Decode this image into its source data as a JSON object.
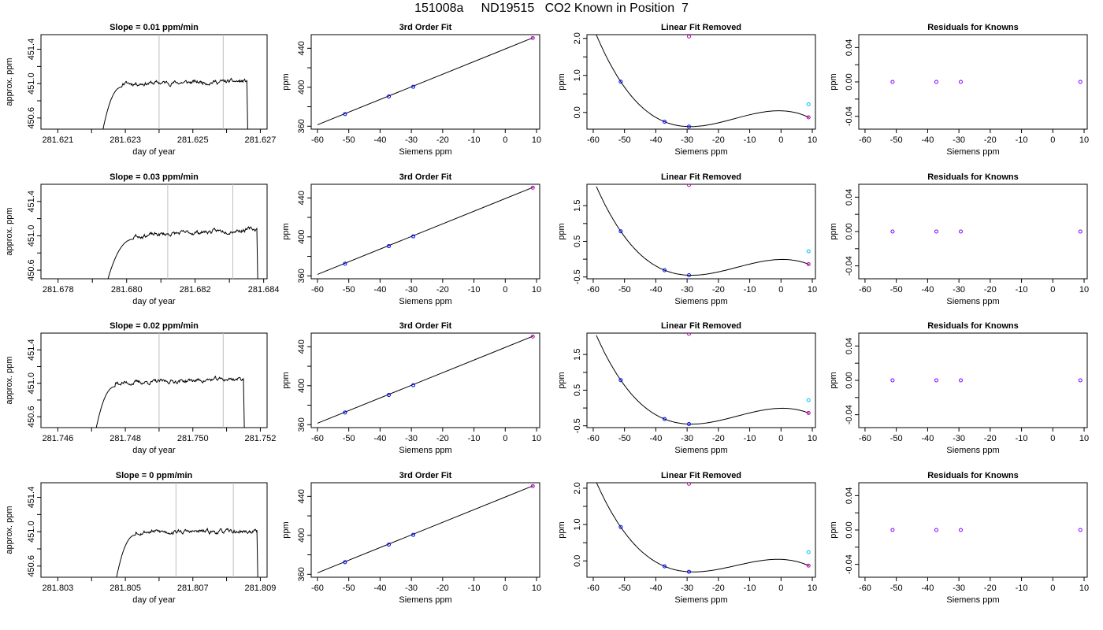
{
  "figure": {
    "title": "151008a     ND19515   CO2 Known in Position  7",
    "colors": {
      "axis": "#000000",
      "trace": "#000000",
      "vline": "#bebebe",
      "point_blue": "#0000ff",
      "point_magenta": "#c000c0",
      "point_cyan": "#00bfff",
      "point_purple": "#8000ff"
    }
  },
  "chart_data": [
    {
      "row": 1,
      "type": "line",
      "title": "Slope =  0.01  ppm/min",
      "xlabel": "day of year",
      "ylabel": "approx. ppm",
      "xlim": [
        281.6205,
        281.6272
      ],
      "ylim": [
        450.47,
        451.57
      ],
      "xticks": [
        281.621,
        281.622,
        281.623,
        281.624,
        281.625,
        281.626,
        281.627
      ],
      "xtick_labels": [
        "281.621",
        "281.623",
        "281.625",
        "281.627"
      ],
      "yticks": [
        450.6,
        450.8,
        451.0,
        451.2,
        451.4
      ],
      "ytick_labels": [
        "450.6",
        "451.0",
        "451.4"
      ],
      "vlines": [
        281.624,
        281.6259
      ],
      "trace": {
        "start": 281.6223,
        "rise_end": 281.6229,
        "end": 281.6266,
        "level": 451.0,
        "slope": 0.01,
        "seed": 11
      }
    },
    {
      "row": 1,
      "type": "line",
      "title": "3rd Order Fit",
      "xlabel": "Siemens ppm",
      "ylabel": "ppm",
      "xlim": [
        -62,
        11
      ],
      "ylim": [
        357,
        454
      ],
      "xticks": [
        -60,
        -50,
        -40,
        -30,
        -20,
        -10,
        0,
        10
      ],
      "xtick_labels": [
        "-60",
        "-50",
        "-40",
        "-30",
        "-20",
        "-10",
        "0",
        "10"
      ],
      "yticks": [
        360,
        380,
        400,
        420,
        440
      ],
      "ytick_labels": [
        "360",
        "400",
        "440"
      ],
      "fit_line": {
        "x": [
          -60,
          9
        ],
        "y": [
          361.5,
          451
        ]
      },
      "points": [
        {
          "x": -51.2,
          "y": 372.5,
          "color": "blue"
        },
        {
          "x": -37.2,
          "y": 390.5,
          "color": "blue"
        },
        {
          "x": -29.4,
          "y": 400.5,
          "color": "blue"
        },
        {
          "x": 8.8,
          "y": 450.5,
          "color": "magenta"
        }
      ]
    },
    {
      "row": 1,
      "type": "line",
      "title": "Linear Fit Removed",
      "xlabel": "Siemens ppm",
      "ylabel": "ppm",
      "xlim": [
        -62,
        11
      ],
      "ylim": [
        -0.45,
        2.1
      ],
      "xticks": [
        -60,
        -50,
        -40,
        -30,
        -20,
        -10,
        0,
        10
      ],
      "xtick_labels": [
        "-60",
        "-50",
        "-40",
        "-30",
        "-20",
        "-10",
        "0",
        "10"
      ],
      "yticks": [
        0.0,
        0.5,
        1.0,
        1.5,
        2.0
      ],
      "ytick_labels": [
        "0.0",
        "1.0",
        "2.0"
      ],
      "curve_points": [
        [
          -59,
          2.03
        ],
        [
          -51.2,
          0.83
        ],
        [
          -37.2,
          -0.25
        ],
        [
          -29.4,
          -0.38
        ],
        [
          8.8,
          -0.13
        ]
      ],
      "points": [
        {
          "x": -51.2,
          "y": 0.83,
          "color": "blue"
        },
        {
          "x": -37.2,
          "y": -0.25,
          "color": "blue"
        },
        {
          "x": -29.4,
          "y": -0.38,
          "color": "blue"
        },
        {
          "x": 8.8,
          "y": -0.13,
          "color": "magenta"
        },
        {
          "x": -29.4,
          "y": 2.05,
          "color": "magenta"
        },
        {
          "x": 8.8,
          "y": 0.22,
          "color": "cyan"
        }
      ]
    },
    {
      "row": 1,
      "type": "scatter",
      "title": "Residuals for Knowns",
      "xlabel": "Siemens ppm",
      "ylabel": "ppm",
      "xlim": [
        -62,
        11
      ],
      "ylim": [
        -0.055,
        0.055
      ],
      "xticks": [
        -60,
        -50,
        -40,
        -30,
        -20,
        -10,
        0,
        10
      ],
      "xtick_labels": [
        "-60",
        "-50",
        "-40",
        "-30",
        "-20",
        "-10",
        "0",
        "10"
      ],
      "yticks": [
        -0.04,
        -0.02,
        0.0,
        0.02,
        0.04
      ],
      "ytick_labels": [
        "-0.04",
        "0.00",
        "0.04"
      ],
      "points": [
        {
          "x": -51.2,
          "y": 0,
          "color": "purple"
        },
        {
          "x": -37.2,
          "y": 0,
          "color": "purple"
        },
        {
          "x": -29.4,
          "y": 0,
          "color": "purple"
        },
        {
          "x": 8.8,
          "y": 0,
          "color": "purple"
        }
      ]
    },
    {
      "row": 2,
      "type": "line",
      "title": "Slope =  0.03  ppm/min",
      "xlabel": "day of year",
      "ylabel": "approx. ppm",
      "xlim": [
        281.6775,
        281.6841
      ],
      "ylim": [
        450.5,
        451.6
      ],
      "xticks": [
        281.678,
        281.679,
        281.68,
        281.681,
        281.682,
        281.683,
        281.684
      ],
      "xtick_labels": [
        "281.678",
        "281.680",
        "281.682",
        "281.684"
      ],
      "yticks": [
        450.6,
        450.8,
        451.0,
        451.2,
        451.4
      ],
      "ytick_labels": [
        "450.6",
        "451.0",
        "451.4"
      ],
      "vlines": [
        281.6812,
        281.6831
      ],
      "trace": {
        "start": 281.6794,
        "rise_end": 281.6802,
        "end": 281.6838,
        "level": 451.0,
        "slope": 0.03,
        "seed": 23
      }
    },
    {
      "row": 2,
      "type": "line",
      "title": "3rd Order Fit",
      "xlabel": "Siemens ppm",
      "ylabel": "ppm",
      "xlim": [
        -62,
        11
      ],
      "ylim": [
        357,
        454
      ],
      "xticks": [
        -60,
        -50,
        -40,
        -30,
        -20,
        -10,
        0,
        10
      ],
      "xtick_labels": [
        "-60",
        "-50",
        "-40",
        "-30",
        "-20",
        "-10",
        "0",
        "10"
      ],
      "yticks": [
        360,
        380,
        400,
        420,
        440
      ],
      "ytick_labels": [
        "360",
        "400",
        "440"
      ],
      "fit_line": {
        "x": [
          -60,
          9
        ],
        "y": [
          361.5,
          451
        ]
      },
      "points": [
        {
          "x": -51.2,
          "y": 372.5,
          "color": "blue"
        },
        {
          "x": -37.2,
          "y": 390.5,
          "color": "blue"
        },
        {
          "x": -29.4,
          "y": 400.5,
          "color": "blue"
        },
        {
          "x": 8.8,
          "y": 450.5,
          "color": "magenta"
        }
      ]
    },
    {
      "row": 2,
      "type": "line",
      "title": "Linear Fit Removed",
      "xlabel": "Siemens ppm",
      "ylabel": "ppm",
      "xlim": [
        -62,
        11
      ],
      "ylim": [
        -0.55,
        2.1
      ],
      "xticks": [
        -60,
        -50,
        -40,
        -30,
        -20,
        -10,
        0,
        10
      ],
      "xtick_labels": [
        "-60",
        "-50",
        "-40",
        "-30",
        "-20",
        "-10",
        "0",
        "10"
      ],
      "yticks": [
        -0.5,
        0.0,
        0.5,
        1.0,
        1.5
      ],
      "ytick_labels": [
        "-0.5",
        "0.5",
        "1.5"
      ],
      "curve_points": [
        [
          -59,
          1.95
        ],
        [
          -51.2,
          0.78
        ],
        [
          -37.2,
          -0.31
        ],
        [
          -29.4,
          -0.45
        ],
        [
          8.8,
          -0.14
        ]
      ],
      "points": [
        {
          "x": -51.2,
          "y": 0.78,
          "color": "blue"
        },
        {
          "x": -37.2,
          "y": -0.31,
          "color": "blue"
        },
        {
          "x": -29.4,
          "y": -0.45,
          "color": "blue"
        },
        {
          "x": 8.8,
          "y": -0.14,
          "color": "magenta"
        },
        {
          "x": -29.4,
          "y": 2.08,
          "color": "magenta"
        },
        {
          "x": 8.8,
          "y": 0.22,
          "color": "cyan"
        }
      ]
    },
    {
      "row": 2,
      "type": "scatter",
      "title": "Residuals for Knowns",
      "xlabel": "Siemens ppm",
      "ylabel": "ppm",
      "xlim": [
        -62,
        11
      ],
      "ylim": [
        -0.055,
        0.055
      ],
      "xticks": [
        -60,
        -50,
        -40,
        -30,
        -20,
        -10,
        0,
        10
      ],
      "xtick_labels": [
        "-60",
        "-50",
        "-40",
        "-30",
        "-20",
        "-10",
        "0",
        "10"
      ],
      "yticks": [
        -0.04,
        -0.02,
        0.0,
        0.02,
        0.04
      ],
      "ytick_labels": [
        "-0.04",
        "0.00",
        "0.04"
      ],
      "points": [
        {
          "x": -51.2,
          "y": 0,
          "color": "purple"
        },
        {
          "x": -37.2,
          "y": 0,
          "color": "purple"
        },
        {
          "x": -29.4,
          "y": 0,
          "color": "purple"
        },
        {
          "x": 8.8,
          "y": 0,
          "color": "purple"
        }
      ]
    },
    {
      "row": 3,
      "type": "line",
      "title": "Slope =  0.02  ppm/min",
      "xlabel": "day of year",
      "ylabel": "approx. ppm",
      "xlim": [
        281.7455,
        281.7522
      ],
      "ylim": [
        450.47,
        451.6
      ],
      "xticks": [
        281.746,
        281.747,
        281.748,
        281.749,
        281.75,
        281.751,
        281.752
      ],
      "xtick_labels": [
        "281.746",
        "281.748",
        "281.750",
        "281.752"
      ],
      "yticks": [
        450.6,
        450.8,
        451.0,
        451.2,
        451.4
      ],
      "ytick_labels": [
        "450.6",
        "451.0",
        "451.4"
      ],
      "vlines": [
        281.749,
        281.7509
      ],
      "trace": {
        "start": 281.7471,
        "rise_end": 281.7477,
        "end": 281.7515,
        "level": 451.0,
        "slope": 0.02,
        "seed": 37
      }
    },
    {
      "row": 3,
      "type": "line",
      "title": "3rd Order Fit",
      "xlabel": "Siemens ppm",
      "ylabel": "ppm",
      "xlim": [
        -62,
        11
      ],
      "ylim": [
        357,
        454
      ],
      "xticks": [
        -60,
        -50,
        -40,
        -30,
        -20,
        -10,
        0,
        10
      ],
      "xtick_labels": [
        "-60",
        "-50",
        "-40",
        "-30",
        "-20",
        "-10",
        "0",
        "10"
      ],
      "yticks": [
        360,
        380,
        400,
        420,
        440
      ],
      "ytick_labels": [
        "360",
        "400",
        "440"
      ],
      "fit_line": {
        "x": [
          -60,
          9
        ],
        "y": [
          361.5,
          451
        ]
      },
      "points": [
        {
          "x": -51.2,
          "y": 372.5,
          "color": "blue"
        },
        {
          "x": -37.2,
          "y": 390.5,
          "color": "blue"
        },
        {
          "x": -29.4,
          "y": 400.5,
          "color": "blue"
        },
        {
          "x": 8.8,
          "y": 450.5,
          "color": "magenta"
        }
      ]
    },
    {
      "row": 3,
      "type": "line",
      "title": "Linear Fit Removed",
      "xlabel": "Siemens ppm",
      "ylabel": "ppm",
      "xlim": [
        -62,
        11
      ],
      "ylim": [
        -0.55,
        2.1
      ],
      "xticks": [
        -60,
        -50,
        -40,
        -30,
        -20,
        -10,
        0,
        10
      ],
      "xtick_labels": [
        "-60",
        "-50",
        "-40",
        "-30",
        "-20",
        "-10",
        "0",
        "10"
      ],
      "yticks": [
        -0.5,
        0.0,
        0.5,
        1.0,
        1.5
      ],
      "ytick_labels": [
        "-0.5",
        "0.5",
        "1.5"
      ],
      "curve_points": [
        [
          -59,
          1.95
        ],
        [
          -51.2,
          0.78
        ],
        [
          -37.2,
          -0.31
        ],
        [
          -29.4,
          -0.45
        ],
        [
          8.8,
          -0.14
        ]
      ],
      "points": [
        {
          "x": -51.2,
          "y": 0.78,
          "color": "blue"
        },
        {
          "x": -37.2,
          "y": -0.31,
          "color": "blue"
        },
        {
          "x": -29.4,
          "y": -0.45,
          "color": "blue"
        },
        {
          "x": 8.8,
          "y": -0.14,
          "color": "magenta"
        },
        {
          "x": -29.4,
          "y": 2.08,
          "color": "magenta"
        },
        {
          "x": 8.8,
          "y": 0.22,
          "color": "cyan"
        }
      ]
    },
    {
      "row": 3,
      "type": "scatter",
      "title": "Residuals for Knowns",
      "xlabel": "Siemens ppm",
      "ylabel": "ppm",
      "xlim": [
        -62,
        11
      ],
      "ylim": [
        -0.055,
        0.055
      ],
      "xticks": [
        -60,
        -50,
        -40,
        -30,
        -20,
        -10,
        0,
        10
      ],
      "xtick_labels": [
        "-60",
        "-50",
        "-40",
        "-30",
        "-20",
        "-10",
        "0",
        "10"
      ],
      "yticks": [
        -0.04,
        -0.02,
        0.0,
        0.02,
        0.04
      ],
      "ytick_labels": [
        "-0.04",
        "0.00",
        "0.04"
      ],
      "points": [
        {
          "x": -51.2,
          "y": 0,
          "color": "purple"
        },
        {
          "x": -37.2,
          "y": 0,
          "color": "purple"
        },
        {
          "x": -29.4,
          "y": 0,
          "color": "purple"
        },
        {
          "x": 8.8,
          "y": 0,
          "color": "purple"
        }
      ]
    },
    {
      "row": 4,
      "type": "line",
      "title": "Slope =  0  ppm/min",
      "xlabel": "day of year",
      "ylabel": "approx. ppm",
      "xlim": [
        281.8025,
        281.8092
      ],
      "ylim": [
        450.47,
        451.57
      ],
      "xticks": [
        281.803,
        281.804,
        281.805,
        281.806,
        281.807,
        281.808,
        281.809
      ],
      "xtick_labels": [
        "281.803",
        "281.805",
        "281.807",
        "281.809"
      ],
      "yticks": [
        450.6,
        450.8,
        451.0,
        451.2,
        451.4
      ],
      "ytick_labels": [
        "450.6",
        "451.0",
        "451.4"
      ],
      "vlines": [
        281.8065,
        281.8082
      ],
      "trace": {
        "start": 281.8047,
        "rise_end": 281.8053,
        "end": 281.8089,
        "level": 451.0,
        "slope": 0.0,
        "seed": 53
      }
    },
    {
      "row": 4,
      "type": "line",
      "title": "3rd Order Fit",
      "xlabel": "Siemens ppm",
      "ylabel": "ppm",
      "xlim": [
        -62,
        11
      ],
      "ylim": [
        357,
        454
      ],
      "xticks": [
        -60,
        -50,
        -40,
        -30,
        -20,
        -10,
        0,
        10
      ],
      "xtick_labels": [
        "-60",
        "-50",
        "-40",
        "-30",
        "-20",
        "-10",
        "0",
        "10"
      ],
      "yticks": [
        360,
        380,
        400,
        420,
        440
      ],
      "ytick_labels": [
        "360",
        "400",
        "440"
      ],
      "fit_line": {
        "x": [
          -60,
          9
        ],
        "y": [
          361.5,
          451
        ]
      },
      "points": [
        {
          "x": -51.2,
          "y": 372.5,
          "color": "blue"
        },
        {
          "x": -37.2,
          "y": 390.5,
          "color": "blue"
        },
        {
          "x": -29.4,
          "y": 400.5,
          "color": "blue"
        },
        {
          "x": 8.8,
          "y": 450.5,
          "color": "magenta"
        }
      ]
    },
    {
      "row": 4,
      "type": "line",
      "title": "Linear Fit Removed",
      "xlabel": "Siemens ppm",
      "ylabel": "ppm",
      "xlim": [
        -62,
        11
      ],
      "ylim": [
        -0.45,
        2.15
      ],
      "xticks": [
        -60,
        -50,
        -40,
        -30,
        -20,
        -10,
        0,
        10
      ],
      "xtick_labels": [
        "-60",
        "-50",
        "-40",
        "-30",
        "-20",
        "-10",
        "0",
        "10"
      ],
      "yticks": [
        0.0,
        0.5,
        1.0,
        1.5,
        2.0
      ],
      "ytick_labels": [
        "0.0",
        "1.0",
        "2.0"
      ],
      "curve_points": [
        [
          -59,
          2.03
        ],
        [
          -51.2,
          0.93
        ],
        [
          -37.2,
          -0.15
        ],
        [
          -29.4,
          -0.3
        ],
        [
          8.8,
          -0.13
        ]
      ],
      "points": [
        {
          "x": -51.2,
          "y": 0.93,
          "color": "blue"
        },
        {
          "x": -37.2,
          "y": -0.15,
          "color": "blue"
        },
        {
          "x": -29.4,
          "y": -0.3,
          "color": "blue"
        },
        {
          "x": 8.8,
          "y": -0.13,
          "color": "magenta"
        },
        {
          "x": -29.4,
          "y": 2.12,
          "color": "magenta"
        },
        {
          "x": 8.8,
          "y": 0.24,
          "color": "cyan"
        }
      ]
    },
    {
      "row": 4,
      "type": "scatter",
      "title": "Residuals for Knowns",
      "xlabel": "Siemens ppm",
      "ylabel": "ppm",
      "xlim": [
        -62,
        11
      ],
      "ylim": [
        -0.055,
        0.055
      ],
      "xticks": [
        -60,
        -50,
        -40,
        -30,
        -20,
        -10,
        0,
        10
      ],
      "xtick_labels": [
        "-60",
        "-50",
        "-40",
        "-30",
        "-20",
        "-10",
        "0",
        "10"
      ],
      "yticks": [
        -0.04,
        -0.02,
        0.0,
        0.02,
        0.04
      ],
      "ytick_labels": [
        "-0.04",
        "0.00",
        "0.04"
      ],
      "points": [
        {
          "x": -51.2,
          "y": 0,
          "color": "purple"
        },
        {
          "x": -37.2,
          "y": 0,
          "color": "purple"
        },
        {
          "x": -29.4,
          "y": 0,
          "color": "purple"
        },
        {
          "x": 8.8,
          "y": 0,
          "color": "purple"
        }
      ]
    }
  ]
}
